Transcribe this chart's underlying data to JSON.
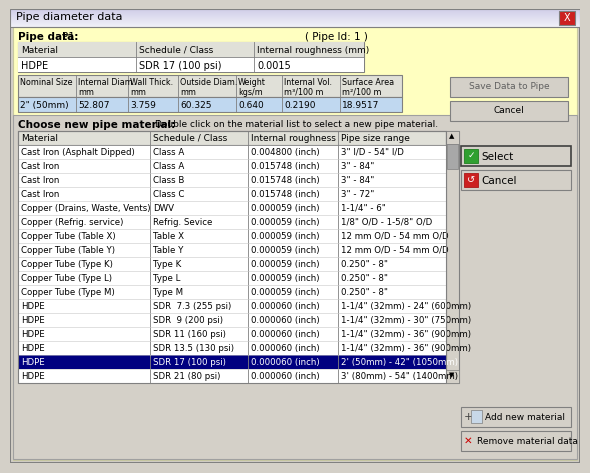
{
  "title": "Pipe diameter data",
  "dialog_bg": "#ffffc0",
  "window_bg": "#d4d0c8",
  "title_bar_gradient_left": "#c8c8e8",
  "title_bar_gradient_right": "#e8e8f0",
  "pipe_data_label": "Pipe data:",
  "pipe_data_value": "P1",
  "pipe_id": "( Pipe Id: 1 )",
  "top_table_headers": [
    "Material",
    "Schedule / Class",
    "Internal roughness (mm)"
  ],
  "top_table_row": [
    "HDPE",
    "SDR 17 (100 psi)",
    "0.0015"
  ],
  "mid_table_headers": [
    "Nominal Size",
    "Internal Diam.\nmm",
    "Wall Thick.\nmm",
    "Outside Diam.\nmm",
    "Weight\nkgs/m",
    "Internal Vol.\nm³/100 m",
    "Surface Area\nm²/100 m"
  ],
  "mid_table_row": [
    "2\" (50mm)",
    "52.807",
    "3.759",
    "60.325",
    "0.640",
    "0.2190",
    "18.9517"
  ],
  "choose_label": "Choose new pipe material:",
  "choose_hint": "Double click on the material list to select a new pipe material.",
  "list_headers": [
    "Material",
    "Schedule / Class",
    "Internal roughness",
    "Pipe size range"
  ],
  "list_rows": [
    [
      "Cast Iron (Asphalt Dipped)",
      "Class A",
      "0.004800 (inch)",
      "3\" I/D - 54\" I/D"
    ],
    [
      "Cast Iron",
      "Class A",
      "0.015748 (inch)",
      "3\" - 84\""
    ],
    [
      "Cast Iron",
      "Class B",
      "0.015748 (inch)",
      "3\" - 84\""
    ],
    [
      "Cast Iron",
      "Class C",
      "0.015748 (inch)",
      "3\" - 72\""
    ],
    [
      "Copper (Drains, Waste, Vents)",
      "DWV",
      "0.000059 (inch)",
      "1-1/4\" - 6\""
    ],
    [
      "Copper (Refrig. service)",
      "Refrig. Sevice",
      "0.000059 (inch)",
      "1/8\" O/D - 1-5/8\" O/D"
    ],
    [
      "Copper Tube (Table X)",
      "Table X",
      "0.000059 (inch)",
      "12 mm O/D - 54 mm O/D"
    ],
    [
      "Copper Tube (Table Y)",
      "Table Y",
      "0.000059 (inch)",
      "12 mm O/D - 54 mm O/D"
    ],
    [
      "Copper Tube (Type K)",
      "Type K",
      "0.000059 (inch)",
      "0.250\" - 8\""
    ],
    [
      "Copper Tube (Type L)",
      "Type L",
      "0.000059 (inch)",
      "0.250\" - 8\""
    ],
    [
      "Copper Tube (Type M)",
      "Type M",
      "0.000059 (inch)",
      "0.250\" - 8\""
    ],
    [
      "HDPE",
      "SDR  7.3 (255 psi)",
      "0.000060 (inch)",
      "1-1/4\" (32mm) - 24\" (600mm)"
    ],
    [
      "HDPE",
      "SDR  9 (200 psi)",
      "0.000060 (inch)",
      "1-1/4\" (32mm) - 30\" (750mm)"
    ],
    [
      "HDPE",
      "SDR 11 (160 psi)",
      "0.000060 (inch)",
      "1-1/4\" (32mm) - 36\" (900mm)"
    ],
    [
      "HDPE",
      "SDR 13.5 (130 psi)",
      "0.000060 (inch)",
      "1-1/4\" (32mm) - 36\" (900mm)"
    ],
    [
      "HDPE",
      "SDR 17 (100 psi)",
      "0.000060 (inch)",
      "2' (50mm) - 42\" (1050mm)"
    ],
    [
      "HDPE",
      "SDR 21 (80 psi)",
      "0.000060 (inch)",
      "3' (80mm) - 54\" (1400mm)"
    ]
  ],
  "highlighted_row": 15,
  "highlight_color": "#000080",
  "highlight_text_color": "#ffffff",
  "btn_save": "Save Data to Pipe",
  "btn_cancel_top": "Cancel",
  "btn_select": "Select",
  "btn_cancel_bottom": "Cancel",
  "btn_add": "Add new material",
  "btn_remove": "Remove material data",
  "text_color": "#000000"
}
